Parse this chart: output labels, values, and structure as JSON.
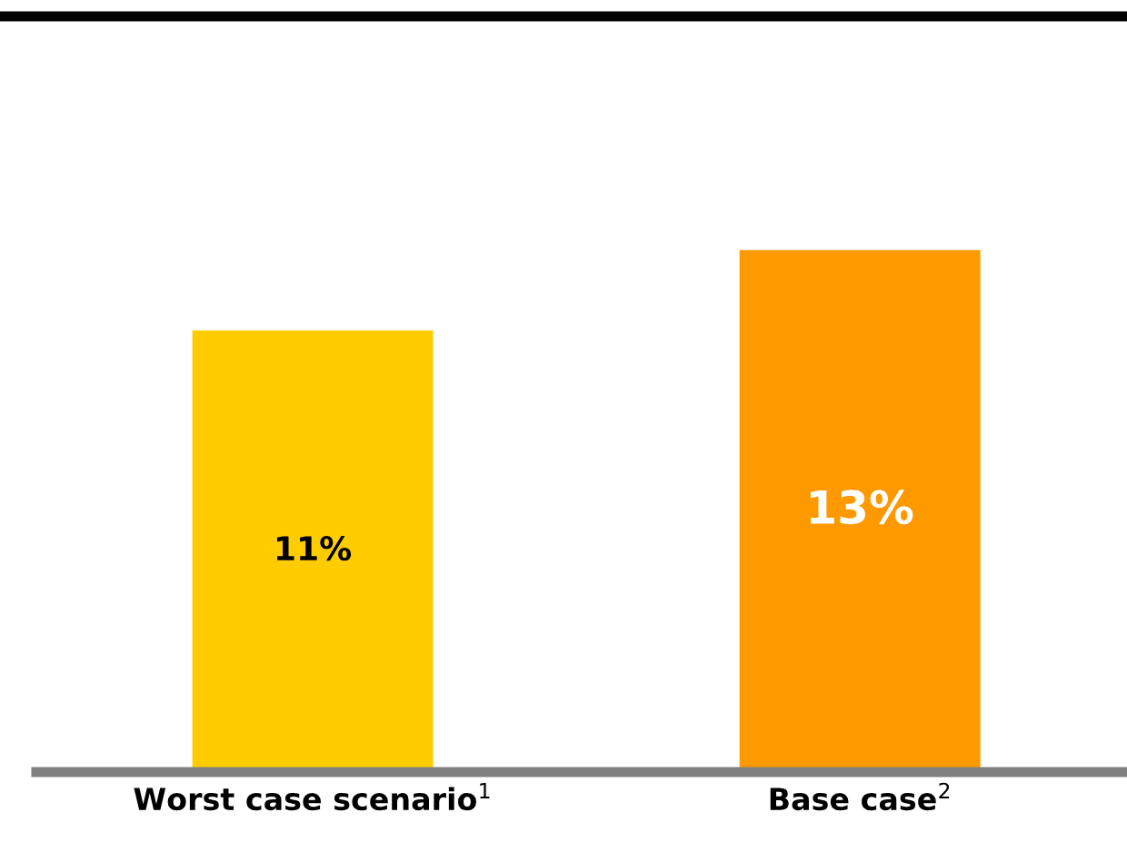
{
  "chart_data": {
    "type": "bar",
    "categories": [
      "Worst case scenario$^{1}$",
      "Base case$^{2}$"
    ],
    "values": [
      11,
      13
    ],
    "colors": [
      "#ffcc00",
      "#ff9900"
    ],
    "value_labels": [
      "11%",
      "13%"
    ],
    "grid": false,
    "legend": false
  }
}
